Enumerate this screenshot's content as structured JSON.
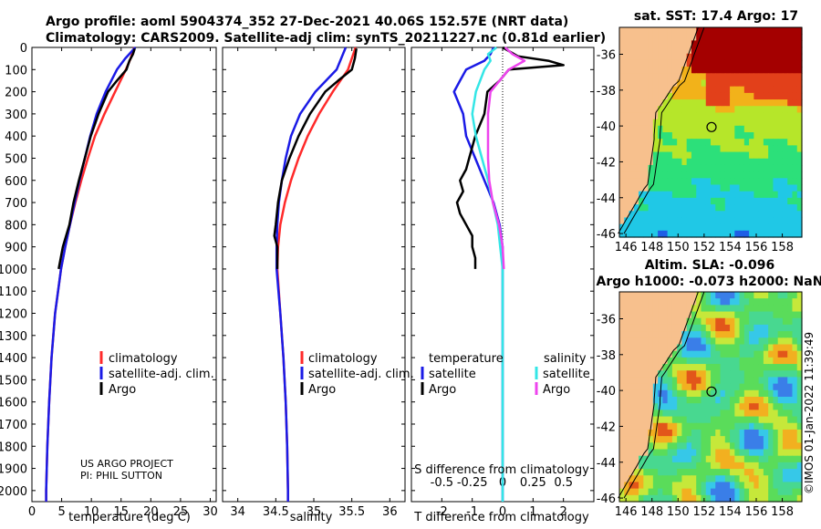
{
  "header": {
    "line1": "Argo profile: aoml 5904374_352 27-Dec-2021 40.06S 152.57E (NRT data)",
    "line2": "Climatology: CARS2009. Satellite-adj clim: synTS_20211227.nc (0.81d earlier)"
  },
  "colors": {
    "climatology": "#ff2a2a",
    "satellite": "#1a1ae6",
    "argo": "#000000",
    "sal_sat": "#33e6e6",
    "sal_argo": "#ee44ee"
  },
  "chart_data": [
    {
      "type": "line",
      "title": "Temperature profile",
      "xlabel": "temperature (deg C)",
      "xlim": [
        0,
        31
      ],
      "ylim": [
        2050,
        0
      ],
      "xticks": [
        0,
        5,
        10,
        15,
        20,
        25,
        30
      ],
      "yticks": [
        0,
        100,
        200,
        300,
        400,
        500,
        600,
        700,
        800,
        900,
        1000,
        1100,
        1200,
        1300,
        1400,
        1500,
        1600,
        1700,
        1800,
        1900,
        2000
      ],
      "legend": [
        "climatology",
        "satellite-adj. clim.",
        "Argo"
      ],
      "series": [
        {
          "name": "climatology",
          "color": "#ff2a2a",
          "depth": [
            0,
            50,
            100,
            200,
            300,
            400,
            500,
            600,
            700,
            800,
            900,
            1000,
            1200,
            1400,
            1600,
            1800,
            2000,
            2050
          ],
          "value": [
            17.2,
            16.6,
            15.8,
            14.0,
            12.2,
            10.6,
            9.4,
            8.3,
            7.3,
            6.4,
            5.6,
            4.9,
            3.9,
            3.3,
            2.9,
            2.6,
            2.4,
            2.4
          ]
        },
        {
          "name": "satellite-adj. clim.",
          "color": "#1a1ae6",
          "depth": [
            0,
            50,
            100,
            200,
            300,
            400,
            500,
            600,
            700,
            800,
            900,
            1000,
            1200,
            1400,
            1600,
            1800,
            2000,
            2050
          ],
          "value": [
            17.4,
            15.7,
            14.3,
            12.4,
            10.9,
            9.8,
            8.9,
            8.0,
            7.2,
            6.4,
            5.6,
            4.9,
            3.9,
            3.3,
            2.9,
            2.6,
            2.4,
            2.4
          ]
        },
        {
          "name": "Argo",
          "color": "#000000",
          "depth": [
            5,
            30,
            60,
            100,
            150,
            200,
            300,
            400,
            500,
            600,
            700,
            800,
            900,
            1000
          ],
          "value": [
            17.3,
            17.0,
            16.4,
            15.9,
            14.3,
            12.8,
            11.2,
            9.9,
            8.9,
            7.9,
            7.0,
            6.3,
            5.2,
            4.5
          ]
        }
      ]
    },
    {
      "type": "line",
      "title": "Salinity profile",
      "xlabel": "salinity",
      "xlim": [
        33.8,
        36.2
      ],
      "ylim": [
        2050,
        0
      ],
      "xticks": [
        34,
        34.5,
        35,
        35.5,
        36
      ],
      "xticklabels": [
        "34",
        "34.5",
        "35",
        "35.5",
        "36"
      ],
      "legend": [
        "climatology",
        "satellite-adj. clim.",
        "Argo"
      ],
      "series": [
        {
          "name": "climatology",
          "color": "#ff2a2a",
          "depth": [
            0,
            100,
            200,
            300,
            400,
            500,
            600,
            700,
            800,
            900,
            1000,
            1200,
            1400,
            1600,
            1800,
            2000,
            2050
          ],
          "value": [
            35.55,
            35.45,
            35.25,
            35.07,
            34.92,
            34.8,
            34.7,
            34.62,
            34.56,
            34.53,
            34.52,
            34.56,
            34.6,
            34.63,
            34.65,
            34.66,
            34.66
          ]
        },
        {
          "name": "satellite-adj. clim.",
          "color": "#1a1ae6",
          "depth": [
            0,
            100,
            200,
            300,
            400,
            500,
            600,
            700,
            800,
            900,
            1000,
            1200,
            1400,
            1600,
            1800,
            2000,
            2050
          ],
          "value": [
            35.42,
            35.3,
            35.02,
            34.82,
            34.7,
            34.63,
            34.58,
            34.54,
            34.52,
            34.51,
            34.51,
            34.56,
            34.6,
            34.63,
            34.65,
            34.66,
            34.66
          ]
        },
        {
          "name": "Argo",
          "color": "#000000",
          "depth": [
            5,
            50,
            100,
            150,
            200,
            300,
            400,
            500,
            600,
            700,
            800,
            850,
            900,
            1000
          ],
          "value": [
            35.56,
            35.54,
            35.5,
            35.32,
            35.15,
            34.95,
            34.8,
            34.68,
            34.58,
            34.53,
            34.5,
            34.48,
            34.52,
            34.52
          ]
        }
      ]
    },
    {
      "type": "line",
      "title": "Difference from climatology",
      "xlabel": "T difference from climatology",
      "xlabel2": "S difference from climatology",
      "xlim": [
        -3,
        3
      ],
      "ylim": [
        2050,
        0
      ],
      "xticks": [
        -2,
        -1,
        0,
        1,
        2
      ],
      "sal_ticks": [
        "-0.5",
        "-0.25",
        "0",
        "0.25",
        "0.5"
      ],
      "legend_titles": [
        "temperature",
        "salinity"
      ],
      "legend": [
        "satellite",
        "Argo",
        "satellite",
        "Argo"
      ],
      "series": [
        {
          "name": "temperature satellite",
          "color": "#1a1ae6",
          "depth": [
            0,
            30,
            60,
            100,
            150,
            200,
            300,
            400,
            500,
            600,
            700,
            800,
            900,
            1000,
            1200,
            1400,
            1600,
            1800,
            2000,
            2050
          ],
          "value": [
            -0.3,
            -0.4,
            -0.6,
            -1.2,
            -1.4,
            -1.6,
            -1.3,
            -1.2,
            -0.9,
            -0.6,
            -0.3,
            -0.1,
            0.0,
            0.0,
            0.0,
            0.0,
            0.0,
            0.0,
            0.0,
            0.0
          ]
        },
        {
          "name": "temperature Argo",
          "color": "#000000",
          "depth": [
            0,
            40,
            60,
            80,
            100,
            150,
            200,
            300,
            400,
            500,
            550,
            600,
            650,
            700,
            750,
            800,
            850,
            900,
            950,
            1000
          ],
          "value": [
            0.0,
            0.5,
            1.5,
            2.0,
            0.2,
            -0.1,
            -0.5,
            -0.6,
            -0.9,
            -1.1,
            -1.2,
            -1.4,
            -1.3,
            -1.5,
            -1.4,
            -1.2,
            -1.0,
            -1.0,
            -0.9,
            -0.9
          ]
        },
        {
          "name": "salinity satellite",
          "color": "#33e6e6",
          "depth": [
            0,
            30,
            60,
            100,
            200,
            300,
            400,
            500,
            600,
            700,
            800,
            900,
            1000,
            1200,
            1400,
            1600,
            1800,
            2000,
            2050
          ],
          "value": [
            -0.05,
            -0.12,
            -0.1,
            -0.15,
            -0.22,
            -0.25,
            -0.22,
            -0.17,
            -0.12,
            -0.08,
            -0.04,
            -0.02,
            0.0,
            0.0,
            0.0,
            0.0,
            0.0,
            0.0,
            0.0
          ]
        },
        {
          "name": "salinity Argo",
          "color": "#ee44ee",
          "depth": [
            0,
            30,
            60,
            100,
            200,
            300,
            400,
            500,
            600,
            700,
            800,
            900,
            1000
          ],
          "value": [
            0.02,
            0.08,
            0.18,
            0.05,
            -0.1,
            -0.12,
            -0.12,
            -0.12,
            -0.11,
            -0.08,
            -0.03,
            0.0,
            0.01
          ]
        }
      ]
    }
  ],
  "sst_map": {
    "title": "sat. SST: 17.4 Argo: 17",
    "lon_ticks": [
      "146",
      "148",
      "150",
      "152",
      "154",
      "156",
      "158"
    ],
    "lat_ticks": [
      "-36",
      "-38",
      "-40",
      "-42",
      "-44",
      "-46"
    ]
  },
  "sla_map": {
    "title1": "Altim. SLA: -0.096",
    "title2": "Argo h1000: -0.073 h2000: NaN",
    "lon_ticks": [
      "146",
      "148",
      "150",
      "152",
      "154",
      "156",
      "158"
    ],
    "lat_ticks": [
      "-36",
      "-38",
      "-40",
      "-42",
      "-44",
      "-46"
    ]
  },
  "credits": {
    "project": "US ARGO PROJECT",
    "pi": "PI: PHIL SUTTON",
    "stamp": "©IMOS 01-Jan-2022 11:39:49"
  }
}
